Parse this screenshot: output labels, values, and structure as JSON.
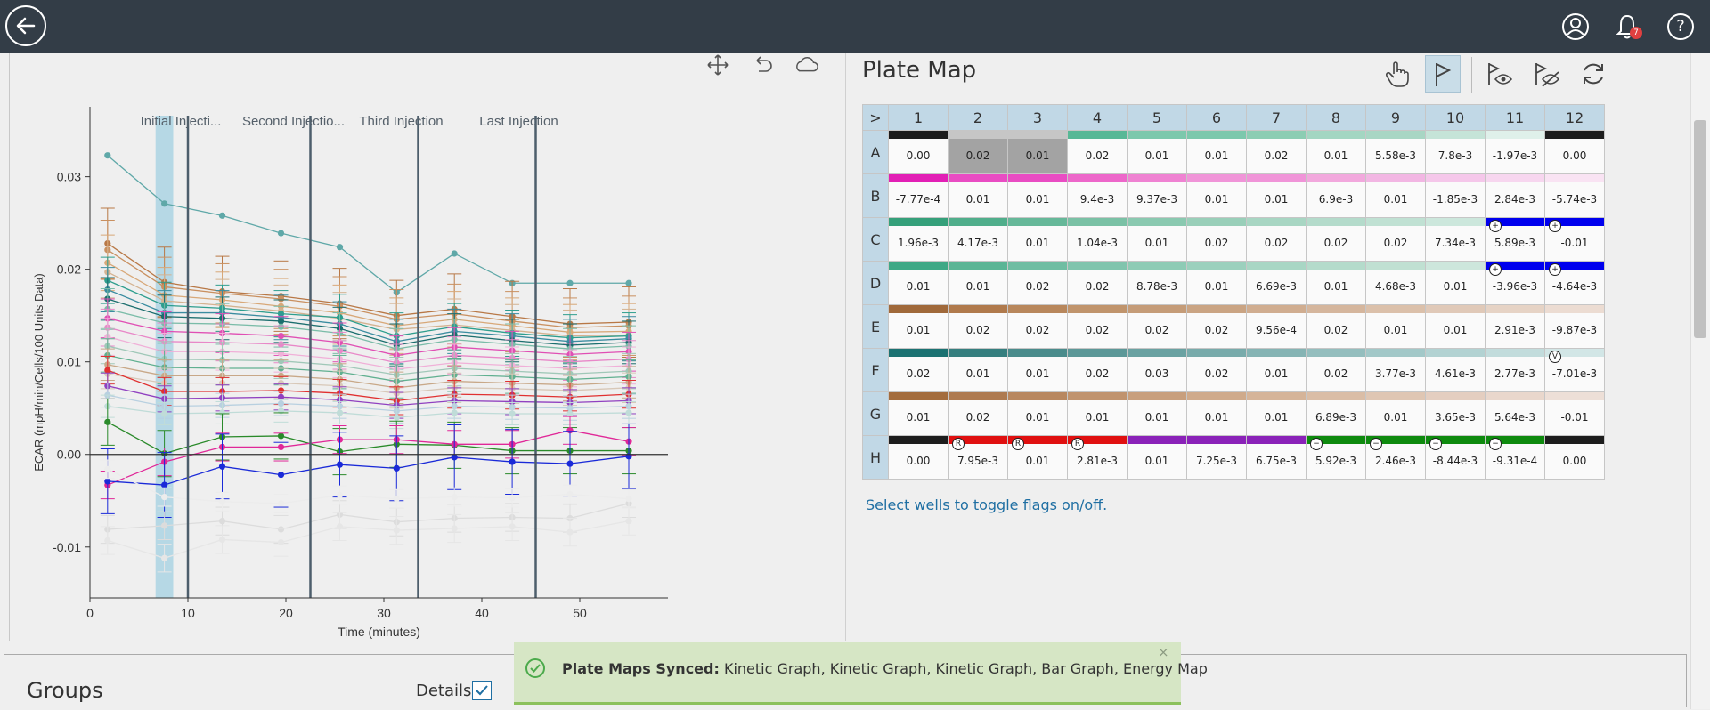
{
  "topbar": {
    "icons": [
      "back-arrow-icon",
      "user-icon",
      "bell-icon",
      "help-icon"
    ],
    "notification_count": "7",
    "help_glyph": "?"
  },
  "chart_toolbar": {
    "icons": [
      "move-icon",
      "undo-icon",
      "cloud-icon"
    ]
  },
  "chart_data": {
    "type": "line",
    "title": "",
    "xlabel": "Time (minutes)",
    "ylabel": "ECAR (mpH/min/Cells/100 Units Data)",
    "xlim": [
      0,
      59
    ],
    "ylim": [
      -0.0155,
      0.039
    ],
    "x_ticks": [
      0,
      10,
      20,
      30,
      40,
      50
    ],
    "x_tick_labels": [
      "0",
      "10",
      "20",
      "30",
      "40",
      "50"
    ],
    "y_ticks": [
      -0.01,
      0,
      0.01,
      0.02,
      0.03
    ],
    "y_tick_labels": [
      "-0.01",
      "0.00",
      "0.01",
      "0.02",
      "0.03"
    ],
    "highlight_range": [
      6.7,
      8.5
    ],
    "injections": [
      {
        "label": "Initial Injecti...",
        "x": 10
      },
      {
        "label": "Second Injectio...",
        "x": 22.5
      },
      {
        "label": "Third Injection",
        "x": 33.5
      },
      {
        "label": "Last Injection",
        "x": 45.5
      }
    ],
    "x": [
      1.8,
      7.6,
      13.5,
      19.5,
      25.5,
      31.3,
      37.2,
      43.1,
      49,
      55
    ],
    "series": [
      {
        "color": "#5fa8a8",
        "values": [
          0.0323,
          0.0271,
          0.0258,
          0.0239,
          0.0224,
          0.0175,
          0.0217,
          0.0185,
          0.0185,
          0.0185
        ],
        "err": 0
      },
      {
        "color": "#b87846",
        "values": [
          0.0228,
          0.0186,
          0.0176,
          0.0171,
          0.0163,
          0.015,
          0.0157,
          0.0149,
          0.0141,
          0.0143
        ],
        "err": 0.0038
      },
      {
        "color": "#c99060",
        "values": [
          0.0221,
          0.0181,
          0.0174,
          0.0168,
          0.016,
          0.0146,
          0.0152,
          0.0144,
          0.0137,
          0.0139
        ],
        "err": 0.0032
      },
      {
        "color": "#d8a878",
        "values": [
          0.0207,
          0.0172,
          0.0167,
          0.016,
          0.0153,
          0.0139,
          0.0146,
          0.0139,
          0.0132,
          0.0133
        ],
        "err": 0.003
      },
      {
        "color": "#d4b290",
        "values": [
          0.0197,
          0.0166,
          0.0161,
          0.0155,
          0.0147,
          0.0135,
          0.014,
          0.0134,
          0.0128,
          0.0129
        ],
        "err": 0.0028
      },
      {
        "color": "#2e9e8e",
        "values": [
          0.0188,
          0.0161,
          0.0158,
          0.0152,
          0.0148,
          0.0128,
          0.0138,
          0.0131,
          0.0126,
          0.0128
        ],
        "err": 0.0025
      },
      {
        "color": "#3a8ca0",
        "values": [
          0.0178,
          0.0153,
          0.0153,
          0.0148,
          0.0141,
          0.0122,
          0.0133,
          0.0128,
          0.0122,
          0.0125
        ],
        "err": 0.0024
      },
      {
        "color": "#1b6e6e",
        "values": [
          0.0168,
          0.0149,
          0.0147,
          0.0144,
          0.0136,
          0.0118,
          0.0129,
          0.0123,
          0.0118,
          0.0121
        ],
        "err": 0.0023
      },
      {
        "color": "#7abca8",
        "values": [
          0.0157,
          0.0142,
          0.0141,
          0.0138,
          0.0131,
          0.0114,
          0.0124,
          0.0119,
          0.0114,
          0.0117
        ],
        "err": 0.0022
      },
      {
        "color": "#e04fb4",
        "values": [
          0.0147,
          0.0133,
          0.0131,
          0.0128,
          0.0121,
          0.0107,
          0.0116,
          0.0112,
          0.0108,
          0.0111
        ],
        "err": 0.0021
      },
      {
        "color": "#e888c8",
        "values": [
          0.0137,
          0.0122,
          0.0121,
          0.0119,
          0.0112,
          0.0099,
          0.0107,
          0.0104,
          0.01,
          0.0103
        ],
        "err": 0.002
      },
      {
        "color": "#f0b0d8",
        "values": [
          0.0127,
          0.0111,
          0.0111,
          0.0109,
          0.0103,
          0.0092,
          0.0099,
          0.0096,
          0.0093,
          0.0096
        ],
        "err": 0.002
      },
      {
        "color": "#a0c8b8",
        "values": [
          0.0117,
          0.0103,
          0.0102,
          0.0101,
          0.0096,
          0.0086,
          0.0093,
          0.009,
          0.0087,
          0.009
        ],
        "err": 0.0019
      },
      {
        "color": "#60b090",
        "values": [
          0.0107,
          0.0094,
          0.0093,
          0.0093,
          0.0089,
          0.0079,
          0.0086,
          0.0084,
          0.0081,
          0.0084
        ],
        "err": 0.0018
      },
      {
        "color": "#c8a888",
        "values": [
          0.0097,
          0.0085,
          0.0085,
          0.0085,
          0.0081,
          0.0072,
          0.0079,
          0.0077,
          0.0075,
          0.0078
        ],
        "err": 0.0017
      },
      {
        "color": "#d8c8b8",
        "values": [
          0.0087,
          0.0077,
          0.0077,
          0.0077,
          0.0074,
          0.0066,
          0.0072,
          0.0071,
          0.0069,
          0.0072
        ],
        "err": 0.0016
      },
      {
        "color": "#e03030",
        "values": [
          0.0091,
          0.0068,
          0.0068,
          0.0069,
          0.0066,
          0.0058,
          0.0065,
          0.0064,
          0.0062,
          0.0065
        ],
        "err": 0.0015
      },
      {
        "color": "#9040c0",
        "values": [
          0.0074,
          0.006,
          0.0061,
          0.0062,
          0.0059,
          0.0053,
          0.0058,
          0.0057,
          0.0056,
          0.0058
        ],
        "err": 0.0014
      },
      {
        "color": "#b8d0e0",
        "values": [
          0.0064,
          0.0052,
          0.0053,
          0.0055,
          0.0052,
          0.0047,
          0.0052,
          0.0051,
          0.005,
          0.0052
        ],
        "err": 0.0013
      },
      {
        "color": "#c0dcd8",
        "values": [
          0.0052,
          0.0044,
          0.0045,
          0.0047,
          0.0045,
          0.004,
          0.0045,
          0.0044,
          0.0044,
          0.0045
        ],
        "err": 0.0012
      },
      {
        "color": "#2a8a2a",
        "values": [
          0.0035,
          0.0001,
          0.0019,
          0.002,
          0.0003,
          0.0011,
          0.001,
          0.0004,
          0.0004,
          0.0004
        ],
        "err": 0.0025
      },
      {
        "color": "#e02898",
        "values": [
          -0.0033,
          -0.0008,
          0.0008,
          0.0008,
          0.0016,
          0.0016,
          0.0011,
          0.0011,
          0.0026,
          0.0014
        ],
        "err": 0.0015
      },
      {
        "color": "#1a2ad8",
        "values": [
          -0.0029,
          -0.0033,
          -0.0013,
          -0.0022,
          -0.0011,
          -0.0015,
          -0.0003,
          -0.0008,
          -0.001,
          -0.0002
        ],
        "err": 0.0035
      },
      {
        "color": "#dcdcdc",
        "values": [
          -0.0081,
          -0.0077,
          -0.0072,
          -0.0081,
          -0.0065,
          -0.0073,
          -0.0069,
          -0.0068,
          -0.0069,
          -0.0053
        ],
        "err": 0.0015
      },
      {
        "color": "#e6e6e6",
        "values": [
          -0.0093,
          -0.0112,
          -0.0092,
          -0.0095,
          -0.0078,
          -0.0082,
          -0.008,
          -0.0078,
          -0.0084,
          -0.0072
        ],
        "err": 0.0015
      },
      {
        "color": "#ececec",
        "values": [
          -0.0016,
          -0.0046,
          -0.0051,
          -0.0053,
          -0.0044,
          -0.0048,
          -0.0046,
          -0.0047,
          -0.0043,
          -0.0048
        ],
        "err": 0.001
      }
    ]
  },
  "plate_map": {
    "title": "Plate Map",
    "tools": [
      "hand-pointer-icon",
      "flag-icon",
      "show-icon",
      "hide-icon",
      "refresh-icon"
    ],
    "corner_label": ">",
    "columns": [
      "1",
      "2",
      "3",
      "4",
      "5",
      "6",
      "7",
      "8",
      "9",
      "10",
      "11",
      "12"
    ],
    "rows": [
      {
        "label": "A",
        "values": [
          "0.00",
          "0.02",
          "0.01",
          "0.02",
          "0.01",
          "0.01",
          "0.02",
          "0.01",
          "5.58e-3",
          "7.8e-3",
          "-1.97e-3",
          "0.00"
        ],
        "colors": [
          "#1d1d1d",
          "#c6c6c6",
          "#c6c6c6",
          "#58b896",
          "#7cc8ac",
          "#7cc8ac",
          "#8ccdb3",
          "#a3d6c2",
          "#a8d6c4",
          "#c5e4d8",
          "#dff0ea",
          "#1d1d1d"
        ]
      },
      {
        "label": "B",
        "values": [
          "-7.77e-4",
          "0.01",
          "0.01",
          "9.4e-3",
          "9.37e-3",
          "0.01",
          "0.01",
          "6.9e-3",
          "0.01",
          "-1.85e-3",
          "2.84e-3",
          "-5.74e-3"
        ],
        "colors": [
          "#e21fb5",
          "#e94cc3",
          "#e94cc3",
          "#ed67ca",
          "#ef82d2",
          "#f094d8",
          "#f094d8",
          "#f2a8dd",
          "#f2b6e3",
          "#f5c7ea",
          "#f7d6ef",
          "#f9e3f3"
        ]
      },
      {
        "label": "C",
        "values": [
          "1.96e-3",
          "4.17e-3",
          "0.01",
          "1.04e-3",
          "0.01",
          "0.02",
          "0.02",
          "0.02",
          "0.02",
          "7.34e-3",
          "5.89e-3",
          "-0.01"
        ],
        "colors": [
          "#35a07a",
          "#50ae8b",
          "#66b899",
          "#7ac1a5",
          "#8ac9b0",
          "#99cfb9",
          "#a8d6c3",
          "#b4dbcb",
          "#c0e1d3",
          "#cce7dc",
          "#0000ee",
          "#0000ee"
        ]
      },
      {
        "label": "D",
        "values": [
          "0.01",
          "0.01",
          "0.02",
          "0.02",
          "8.78e-3",
          "0.01",
          "6.69e-3",
          "0.01",
          "4.68e-3",
          "0.01",
          "-3.96e-3",
          "-4.64e-3"
        ],
        "colors": [
          "#3fa886",
          "#5bb595",
          "#6fbda2",
          "#80c4ad",
          "#8ecbb5",
          "#9bd0bd",
          "#a8d6c4",
          "#b4dbcb",
          "#c0e0d2",
          "#cde6dc",
          "#0000ee",
          "#0000ee"
        ]
      },
      {
        "label": "E",
        "values": [
          "0.01",
          "0.02",
          "0.02",
          "0.02",
          "0.02",
          "0.02",
          "9.56e-4",
          "0.02",
          "0.01",
          "0.01",
          "2.91e-3",
          "-9.87e-3"
        ],
        "colors": [
          "#a0693a",
          "#b07a4c",
          "#b8875c",
          "#c0946c",
          "#c59c78",
          "#caa483",
          "#d0ad90",
          "#d5b69d",
          "#dbc0aa",
          "#e0c9b8",
          "#e6d3c5",
          "#ecdcd2"
        ]
      },
      {
        "label": "F",
        "values": [
          "0.02",
          "0.01",
          "0.01",
          "0.02",
          "0.03",
          "0.02",
          "0.01",
          "0.02",
          "3.77e-3",
          "4.61e-3",
          "2.77e-3",
          "-7.01e-3"
        ],
        "colors": [
          "#1b7272",
          "#357f7f",
          "#4a8c8c",
          "#5c9898",
          "#6aa2a2",
          "#78abab",
          "#85b4b4",
          "#94bebe",
          "#a2c8c8",
          "#b2d2d2",
          "#c2dcdc",
          "#d2e6e6"
        ]
      },
      {
        "label": "G",
        "values": [
          "0.01",
          "0.02",
          "0.01",
          "0.01",
          "0.01",
          "0.01",
          "0.01",
          "6.89e-3",
          "0.01",
          "3.65e-3",
          "5.64e-3",
          "-0.01"
        ],
        "colors": [
          "#a36c3d",
          "#ae7a50",
          "#b8875f",
          "#c0936e",
          "#c89f7d",
          "#cfaa8b",
          "#d5b499",
          "#dabda6",
          "#dfc6b3",
          "#e4cec0",
          "#e9d7cc",
          "#eddfd7"
        ]
      },
      {
        "label": "H",
        "values": [
          "0.00",
          "7.95e-3",
          "0.01",
          "2.81e-3",
          "0.01",
          "7.25e-3",
          "6.75e-3",
          "5.92e-3",
          "2.46e-3",
          "-8.44e-3",
          "-9.31e-4",
          "0.00"
        ],
        "colors": [
          "#1d1d1d",
          "#e01010",
          "#e01010",
          "#e01010",
          "#8a22b8",
          "#8a22b8",
          "#8a22b8",
          "#0e8a0e",
          "#0e8a0e",
          "#0e8a0e",
          "#0e8a0e",
          "#1d1d1d"
        ]
      }
    ],
    "selected": [
      [
        0,
        1
      ],
      [
        0,
        2
      ]
    ],
    "flags": [
      {
        "row": 2,
        "col": 10,
        "glyph": "+"
      },
      {
        "row": 2,
        "col": 11,
        "glyph": "+"
      },
      {
        "row": 3,
        "col": 10,
        "glyph": "+"
      },
      {
        "row": 3,
        "col": 11,
        "glyph": "+"
      },
      {
        "row": 5,
        "col": 11,
        "glyph": "V"
      },
      {
        "row": 7,
        "col": 1,
        "glyph": "R"
      },
      {
        "row": 7,
        "col": 2,
        "glyph": "R"
      },
      {
        "row": 7,
        "col": 3,
        "glyph": "R"
      },
      {
        "row": 7,
        "col": 7,
        "glyph": "−"
      },
      {
        "row": 7,
        "col": 8,
        "glyph": "−"
      },
      {
        "row": 7,
        "col": 9,
        "glyph": "−"
      },
      {
        "row": 7,
        "col": 10,
        "glyph": "−"
      }
    ],
    "hint": "Select wells to toggle flags on/off."
  },
  "groups_panel": {
    "title": "Groups",
    "details_label": "Details",
    "details_checked": true
  },
  "toast": {
    "title": "Plate Maps Synced:",
    "message": "Kinetic Graph, Kinetic Graph, Kinetic Graph, Bar Graph, Energy Map",
    "close": "×"
  }
}
